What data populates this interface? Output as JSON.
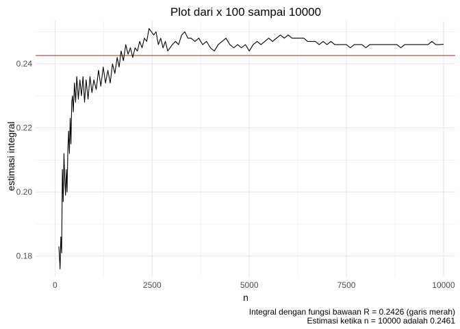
{
  "chart_data": {
    "type": "line",
    "title": "Plot dari x 100 sampai 10000",
    "xlabel": "n",
    "ylabel": "estimasi integral",
    "xlim": [
      -500,
      10300
    ],
    "ylim": [
      0.1735,
      0.2535
    ],
    "x_ticks": [
      0,
      2500,
      5000,
      7500,
      10000
    ],
    "x_tick_labels": [
      "0",
      "2500",
      "5000",
      "7500",
      "10000"
    ],
    "y_ticks": [
      0.18,
      0.2,
      0.22,
      0.24
    ],
    "y_tick_labels": [
      "0.18",
      "0.20",
      "0.22",
      "0.24"
    ],
    "grid": true,
    "reference_line": {
      "y": 0.2426,
      "color": "#b22222"
    },
    "caption": [
      "Integral dengan fungsi bawaan R = 0.2426 (garis merah)",
      "Estimasi ketika n = 10000 adalah 0.2461"
    ],
    "series": [
      {
        "color": "#000000",
        "points": [
          [
            100,
            0.183
          ],
          [
            130,
            0.176
          ],
          [
            150,
            0.186
          ],
          [
            170,
            0.181
          ],
          [
            190,
            0.207
          ],
          [
            210,
            0.197
          ],
          [
            230,
            0.212
          ],
          [
            250,
            0.204
          ],
          [
            270,
            0.199
          ],
          [
            290,
            0.207
          ],
          [
            310,
            0.2
          ],
          [
            330,
            0.213
          ],
          [
            350,
            0.219
          ],
          [
            370,
            0.212
          ],
          [
            390,
            0.223
          ],
          [
            410,
            0.215
          ],
          [
            430,
            0.228
          ],
          [
            450,
            0.23
          ],
          [
            470,
            0.225
          ],
          [
            500,
            0.234
          ],
          [
            530,
            0.228
          ],
          [
            560,
            0.236
          ],
          [
            600,
            0.229
          ],
          [
            640,
            0.235
          ],
          [
            680,
            0.23
          ],
          [
            720,
            0.236
          ],
          [
            760,
            0.228
          ],
          [
            800,
            0.235
          ],
          [
            850,
            0.229
          ],
          [
            900,
            0.236
          ],
          [
            950,
            0.231
          ],
          [
            1000,
            0.235
          ],
          [
            1060,
            0.232
          ],
          [
            1120,
            0.238
          ],
          [
            1180,
            0.233
          ],
          [
            1240,
            0.239
          ],
          [
            1300,
            0.234
          ],
          [
            1360,
            0.238
          ],
          [
            1420,
            0.234
          ],
          [
            1480,
            0.24
          ],
          [
            1540,
            0.237
          ],
          [
            1600,
            0.242
          ],
          [
            1650,
            0.239
          ],
          [
            1700,
            0.244
          ],
          [
            1760,
            0.241
          ],
          [
            1820,
            0.246
          ],
          [
            1880,
            0.243
          ],
          [
            1940,
            0.245
          ],
          [
            2000,
            0.242
          ],
          [
            2060,
            0.245
          ],
          [
            2120,
            0.244
          ],
          [
            2180,
            0.247
          ],
          [
            2240,
            0.245
          ],
          [
            2300,
            0.248
          ],
          [
            2360,
            0.247
          ],
          [
            2420,
            0.251
          ],
          [
            2480,
            0.25
          ],
          [
            2540,
            0.249
          ],
          [
            2600,
            0.25
          ],
          [
            2660,
            0.246
          ],
          [
            2720,
            0.248
          ],
          [
            2780,
            0.245
          ],
          [
            2840,
            0.247
          ],
          [
            2900,
            0.244
          ],
          [
            2960,
            0.245
          ],
          [
            3020,
            0.246
          ],
          [
            3100,
            0.247
          ],
          [
            3180,
            0.246
          ],
          [
            3260,
            0.249
          ],
          [
            3340,
            0.25
          ],
          [
            3420,
            0.248
          ],
          [
            3500,
            0.248
          ],
          [
            3600,
            0.247
          ],
          [
            3700,
            0.248
          ],
          [
            3800,
            0.246
          ],
          [
            3900,
            0.247
          ],
          [
            4000,
            0.245
          ],
          [
            4100,
            0.244
          ],
          [
            4200,
            0.246
          ],
          [
            4300,
            0.247
          ],
          [
            4400,
            0.248
          ],
          [
            4500,
            0.246
          ],
          [
            4600,
            0.245
          ],
          [
            4700,
            0.246
          ],
          [
            4800,
            0.245
          ],
          [
            4900,
            0.246
          ],
          [
            5000,
            0.244
          ],
          [
            5100,
            0.246
          ],
          [
            5200,
            0.247
          ],
          [
            5300,
            0.246
          ],
          [
            5400,
            0.247
          ],
          [
            5500,
            0.248
          ],
          [
            5600,
            0.247
          ],
          [
            5700,
            0.248
          ],
          [
            5800,
            0.249
          ],
          [
            5900,
            0.248
          ],
          [
            6000,
            0.249
          ],
          [
            6100,
            0.248
          ],
          [
            6200,
            0.248
          ],
          [
            6300,
            0.248
          ],
          [
            6400,
            0.248
          ],
          [
            6500,
            0.247
          ],
          [
            6600,
            0.247
          ],
          [
            6700,
            0.247
          ],
          [
            6800,
            0.246
          ],
          [
            6900,
            0.247
          ],
          [
            7000,
            0.246
          ],
          [
            7100,
            0.247
          ],
          [
            7200,
            0.246
          ],
          [
            7300,
            0.246
          ],
          [
            7400,
            0.246
          ],
          [
            7500,
            0.246
          ],
          [
            7600,
            0.245
          ],
          [
            7700,
            0.246
          ],
          [
            7800,
            0.246
          ],
          [
            7900,
            0.246
          ],
          [
            8000,
            0.245
          ],
          [
            8100,
            0.246
          ],
          [
            8200,
            0.246
          ],
          [
            8300,
            0.246
          ],
          [
            8400,
            0.246
          ],
          [
            8500,
            0.246
          ],
          [
            8600,
            0.246
          ],
          [
            8700,
            0.246
          ],
          [
            8800,
            0.246
          ],
          [
            8900,
            0.245
          ],
          [
            9000,
            0.246
          ],
          [
            9100,
            0.246
          ],
          [
            9200,
            0.246
          ],
          [
            9300,
            0.246
          ],
          [
            9400,
            0.246
          ],
          [
            9500,
            0.246
          ],
          [
            9600,
            0.246
          ],
          [
            9700,
            0.247
          ],
          [
            9800,
            0.246
          ],
          [
            9900,
            0.246
          ],
          [
            10000,
            0.2461
          ]
        ]
      }
    ]
  }
}
